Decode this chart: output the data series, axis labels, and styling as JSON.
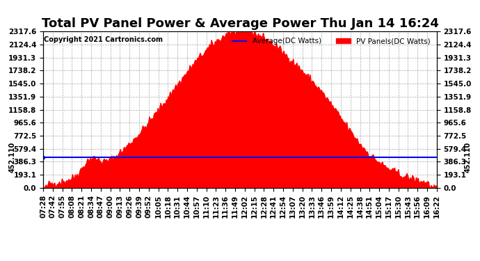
{
  "title": "Total PV Panel Power & Average Power Thu Jan 14 16:24",
  "copyright": "Copyright 2021 Cartronics.com",
  "average_label": "Average(DC Watts)",
  "pv_label": "PV Panels(DC Watts)",
  "average_color": "blue",
  "pv_color": "red",
  "average_value": 452.11,
  "y_max": 2317.6,
  "y_min": 0.0,
  "y_ticks": [
    0.0,
    193.1,
    386.3,
    579.4,
    772.5,
    965.6,
    1158.8,
    1351.9,
    1545.0,
    1738.2,
    1931.3,
    2124.4,
    2317.6
  ],
  "background_color": "#ffffff",
  "grid_color": "#aaaaaa",
  "title_fontsize": 13,
  "tick_fontsize": 7.5,
  "x_tick_labels": [
    "07:28",
    "07:42",
    "07:55",
    "08:08",
    "08:21",
    "08:34",
    "08:47",
    "09:00",
    "09:13",
    "09:26",
    "09:39",
    "09:52",
    "10:05",
    "10:18",
    "10:31",
    "10:44",
    "10:57",
    "11:10",
    "11:23",
    "11:36",
    "11:49",
    "12:02",
    "12:15",
    "12:28",
    "12:41",
    "12:54",
    "13:07",
    "13:20",
    "13:33",
    "13:46",
    "13:59",
    "14:12",
    "14:25",
    "14:38",
    "14:51",
    "15:04",
    "15:17",
    "15:30",
    "15:43",
    "15:56",
    "16:09",
    "16:22"
  ]
}
